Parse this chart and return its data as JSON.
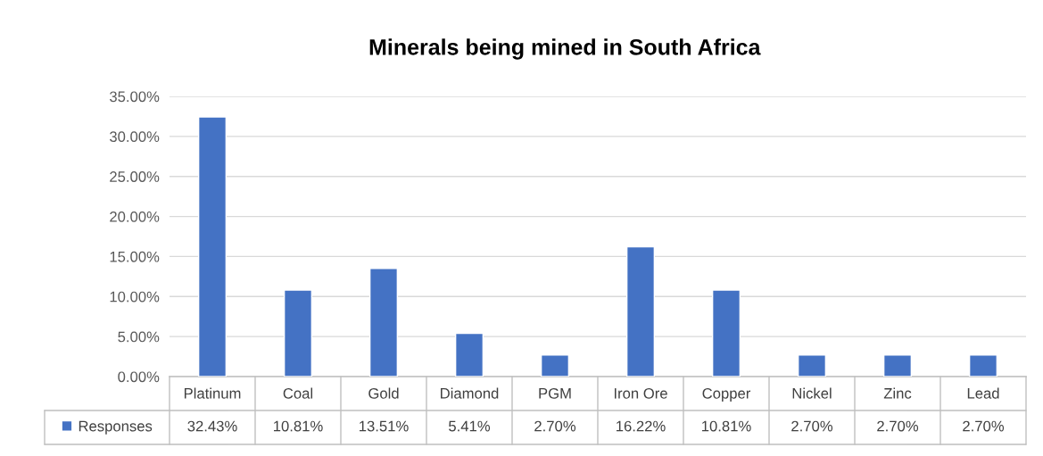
{
  "chart_data": {
    "type": "bar",
    "title": "Minerals being mined in South Africa",
    "categories": [
      "Platinum",
      "Coal",
      "Gold",
      "Diamond",
      "PGM",
      "Iron Ore",
      "Copper",
      "Nickel",
      "Zinc",
      "Lead"
    ],
    "series": [
      {
        "name": "Responses",
        "color": "#4472c4",
        "values": [
          32.43,
          10.81,
          13.51,
          5.41,
          2.7,
          16.22,
          10.81,
          2.7,
          2.7,
          2.7
        ],
        "value_labels": [
          "32.43%",
          "10.81%",
          "13.51%",
          "5.41%",
          "2.70%",
          "16.22%",
          "10.81%",
          "2.70%",
          "2.70%",
          "2.70%"
        ]
      }
    ],
    "ylim": [
      0,
      35
    ],
    "yticks": [
      {
        "value": 0,
        "label": "0.00%"
      },
      {
        "value": 5,
        "label": "5.00%"
      },
      {
        "value": 10,
        "label": "10.00%"
      },
      {
        "value": 15,
        "label": "15.00%"
      },
      {
        "value": 20,
        "label": "20.00%"
      },
      {
        "value": 25,
        "label": "25.00%"
      },
      {
        "value": 30,
        "label": "30.00%"
      },
      {
        "value": 35,
        "label": "35.00%"
      }
    ],
    "grid": "y",
    "legend": "bottom left"
  }
}
